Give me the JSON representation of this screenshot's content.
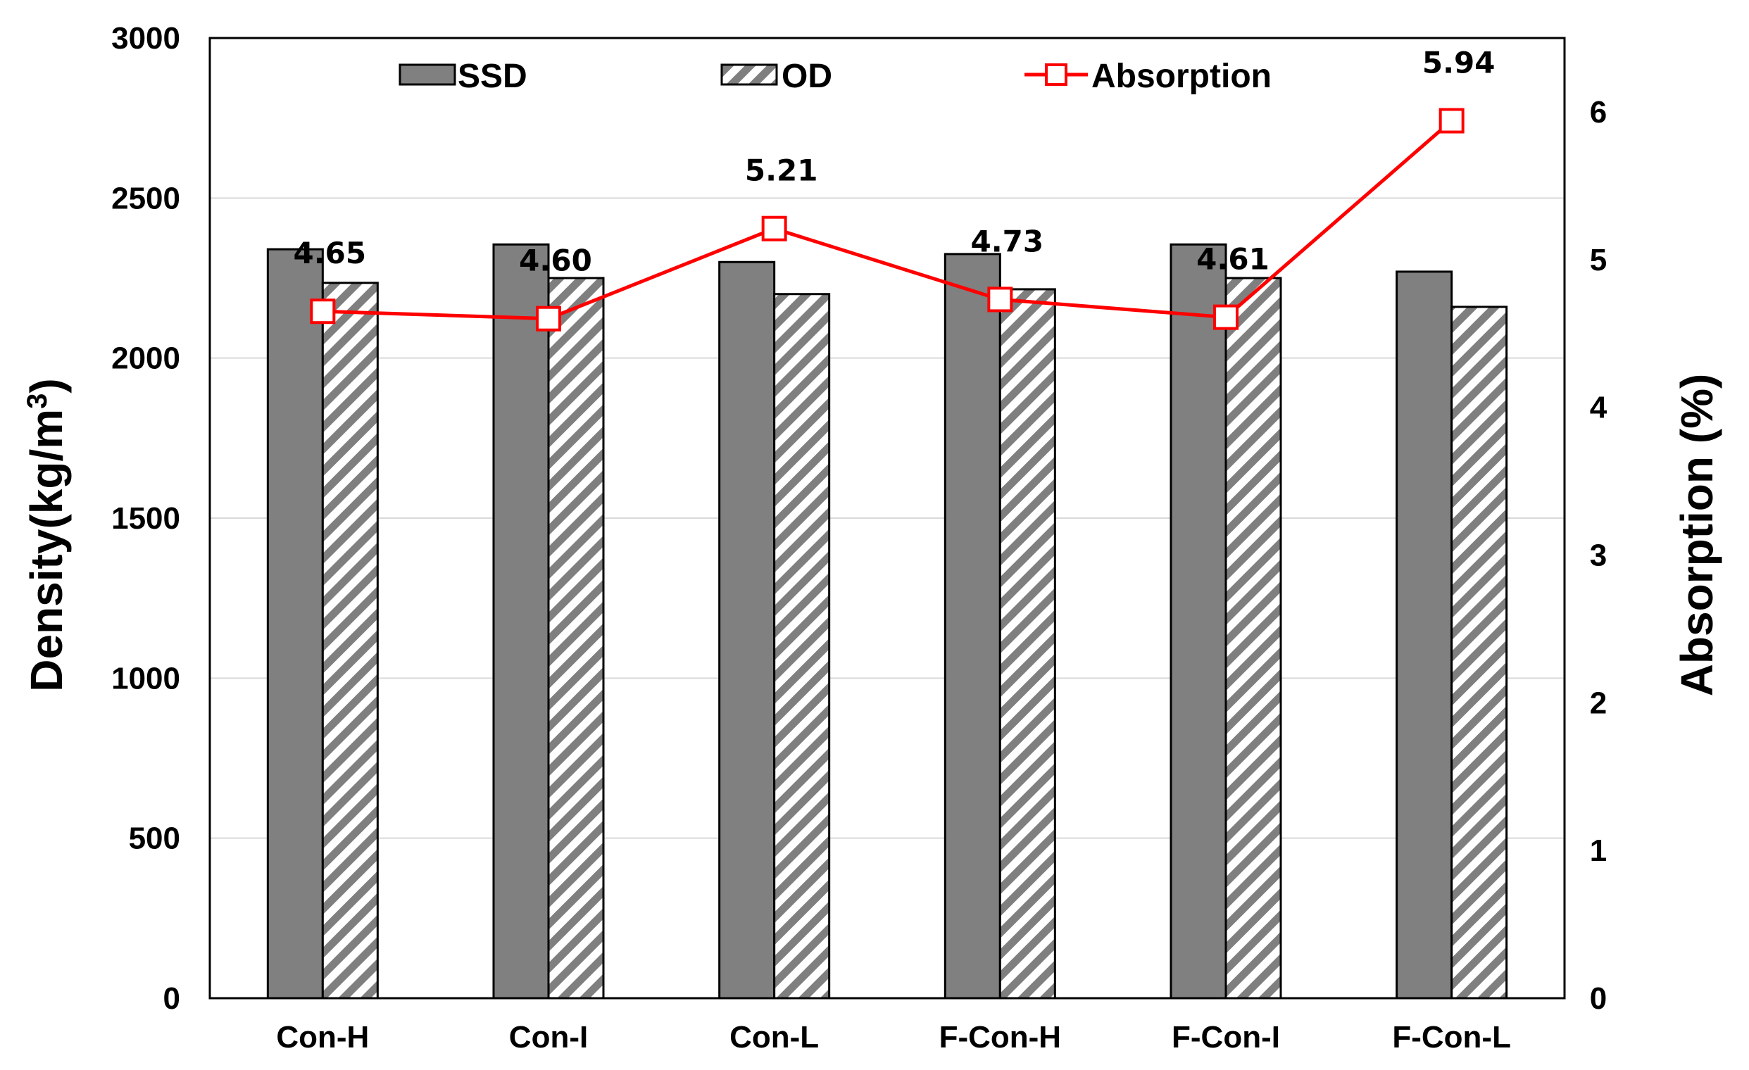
{
  "chart_data": {
    "type": "bar",
    "categories": [
      "Con-H",
      "Con-I",
      "Con-L",
      "F-Con-H",
      "F-Con-I",
      "F-Con-L"
    ],
    "series": [
      {
        "name": "SSD",
        "kind": "bar",
        "axis": "left",
        "color": "#808080",
        "values": [
          2340,
          2355,
          2300,
          2325,
          2355,
          2270
        ]
      },
      {
        "name": "OD",
        "kind": "bar",
        "axis": "left",
        "pattern": "diagonal-hatch",
        "color": "#808080",
        "values": [
          2235,
          2250,
          2200,
          2215,
          2250,
          2160
        ]
      },
      {
        "name": "Absorption",
        "kind": "line",
        "axis": "right",
        "marker": "open-square",
        "color": "#ff0000",
        "values": [
          4.65,
          4.6,
          5.21,
          4.73,
          4.61,
          5.94
        ],
        "labels": [
          "4.65",
          "4.60",
          "5.21",
          "4.73",
          "4.61",
          "5.94"
        ]
      }
    ],
    "ylabel": "Density(kg/m",
    "ylabel_superscript": "3",
    "ylabel_suffix": ")",
    "y2label": "Absorption (%)",
    "ylim": [
      0,
      3000
    ],
    "y2lim": [
      0,
      6.5
    ],
    "yticks": [
      "0",
      "500",
      "1000",
      "1500",
      "2000",
      "2500",
      "3000"
    ],
    "y2ticks": [
      "0",
      "1",
      "2",
      "3",
      "4",
      "5",
      "6"
    ],
    "grid": true,
    "legend": [
      "SSD",
      "OD",
      "Absorption"
    ],
    "legend_position": "top-inside"
  }
}
